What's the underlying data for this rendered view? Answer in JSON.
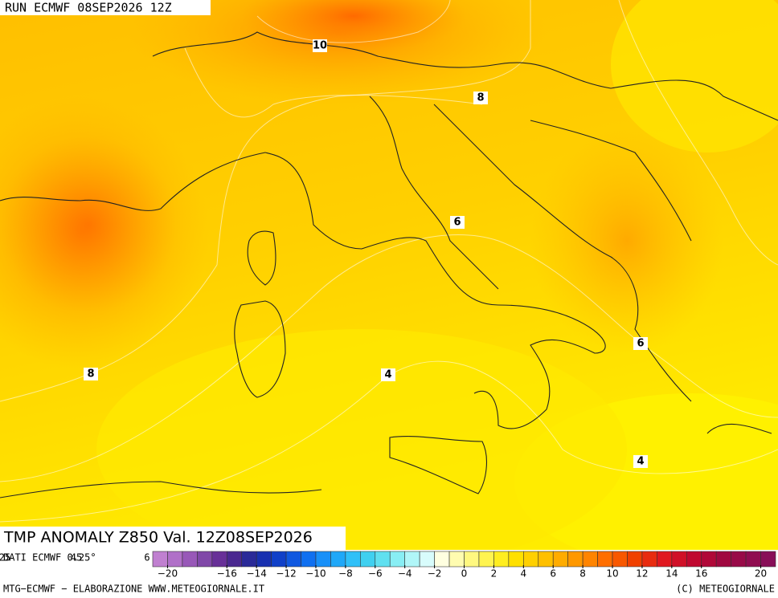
{
  "header": {
    "run": "RUN ECMWF 08SEP2026 12Z"
  },
  "contour_labels": [
    "10",
    "8",
    "8",
    "6",
    "6",
    "4",
    "4"
  ],
  "title": "TMP ANOMALY Z850 Val. 12Z08SEP2026",
  "source": "DATI ECMWF 0.25°",
  "axis_fragments": [
    "25",
    "45",
    "6"
  ],
  "colorbar": {
    "lim": [
      -21,
      21
    ],
    "ticks": [
      -20,
      -16,
      -14,
      -12,
      -10,
      -8,
      -6,
      -4,
      -2,
      0,
      2,
      4,
      6,
      8,
      10,
      12,
      14,
      16,
      20
    ],
    "tick_labels": [
      "−20",
      "−16",
      "−14",
      "−12",
      "−10",
      "−8",
      "−6",
      "−4",
      "−2",
      "0",
      "2",
      "4",
      "6",
      "8",
      "10",
      "12",
      "14",
      "16",
      "20"
    ],
    "colors": [
      "#c080d0",
      "#b070c8",
      "#9858b8",
      "#8048a8",
      "#683098",
      "#4a2890",
      "#2a2a98",
      "#1830b0",
      "#1040c8",
      "#1058e0",
      "#1070f0",
      "#1890f8",
      "#20a8f8",
      "#30c0f8",
      "#40d0f0",
      "#60e0f0",
      "#88eef4",
      "#b0f6f8",
      "#d8fcfc",
      "#ffffe0",
      "#fffcb0",
      "#fff880",
      "#fff450",
      "#ffee20",
      "#ffe000",
      "#ffd000",
      "#ffc000",
      "#ffac00",
      "#ff9800",
      "#ff8400",
      "#ff6e00",
      "#f85800",
      "#f04000",
      "#e82c10",
      "#e01820",
      "#d01028",
      "#c00830",
      "#b00838",
      "#a00840",
      "#980a48",
      "#900c50",
      "#880e58"
    ]
  },
  "footer": {
    "left": "MTG−ECMWF − ELABORAZIONE WWW.METEOGIORNALE.IT",
    "right": "(C) METEOGIORNALE"
  }
}
